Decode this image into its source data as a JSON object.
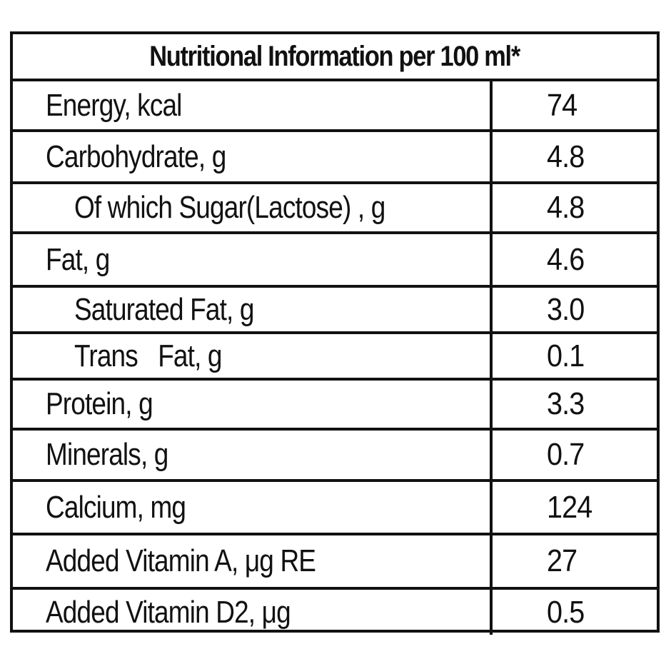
{
  "title": "Nutritional Information per 100 ml*",
  "rows": [
    {
      "label": "Energy, kcal",
      "value": "74"
    },
    {
      "label": "Carbohydrate, g",
      "value": "4.8"
    },
    {
      "label": "Of which Sugar(Lactose) , g",
      "value": "4.8"
    },
    {
      "label": "Fat, g",
      "value": "4.6"
    },
    {
      "label": "Saturated Fat, g",
      "value": "3.0"
    },
    {
      "label": "Trans   Fat, g",
      "value": "0.1"
    },
    {
      "label": "Protein, g",
      "value": "3.3"
    },
    {
      "label": "Minerals, g",
      "value": "0.7"
    },
    {
      "label": "Calcium, mg",
      "value": "124"
    },
    {
      "label": "Added Vitamin A, μg RE",
      "value": "27"
    },
    {
      "label": "Added Vitamin D2, μg",
      "value": "0.5"
    }
  ]
}
